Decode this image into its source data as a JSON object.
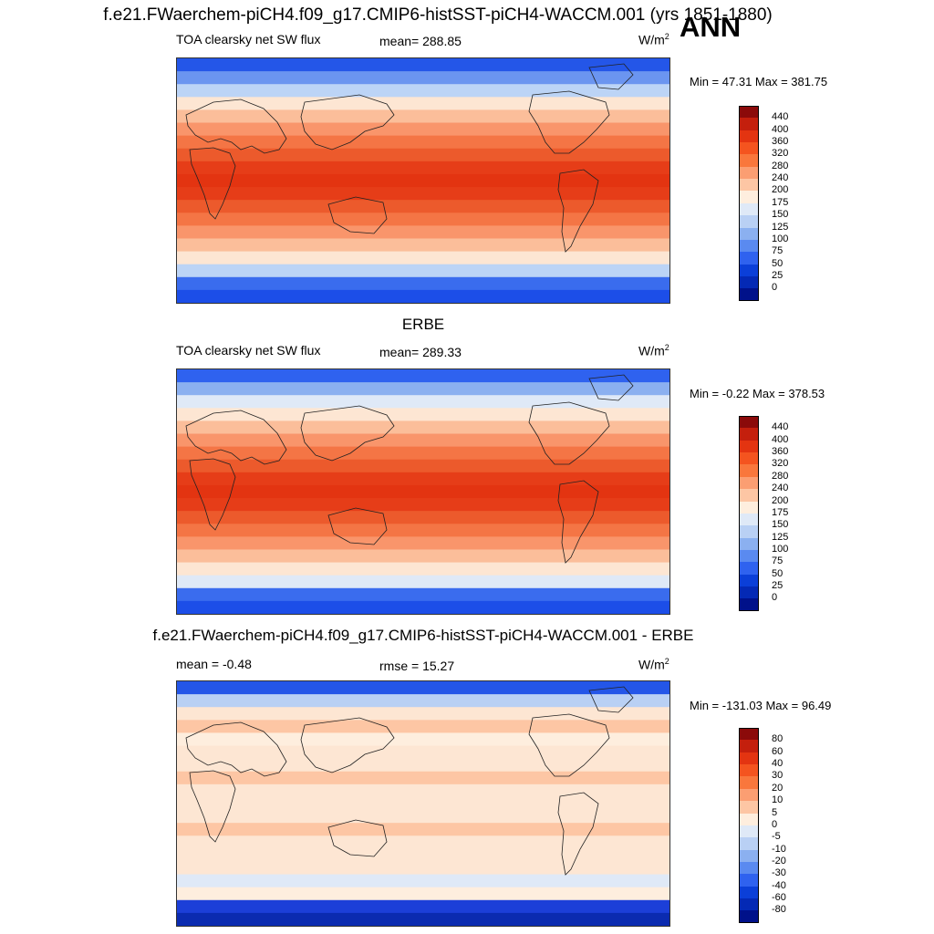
{
  "main_title": "f.e21.FWaerchem-piCH4.f09_g17.CMIP6-histSST-piCH4-WACCM.001 (yrs 1851-1880)",
  "season": "ANN",
  "chart_data": [
    {
      "type": "heatmap",
      "panel_title": "",
      "variable": "TOA clearsky net SW flux",
      "stat_label": "mean= 288.85",
      "units": "W/m",
      "units_sup": "2",
      "minmax": "Min =  47.31 Max = 381.75",
      "colorbar_labels": [
        "440",
        "400",
        "360",
        "320",
        "280",
        "240",
        "200",
        "175",
        "150",
        "125",
        "100",
        "75",
        "50",
        "25",
        "0"
      ],
      "colorbar_colors": [
        "#8b0a0a",
        "#c41f0d",
        "#e33411",
        "#f4541f",
        "#f9773c",
        "#fb9e72",
        "#fdc6a4",
        "#feeede",
        "#dfe9f7",
        "#b9d0f4",
        "#8bb0f0",
        "#5a8af0",
        "#2f62ef",
        "#0b3fd8",
        "#0429b5",
        "#00118a"
      ],
      "band_colors": [
        "#2456e8",
        "#6b95f0",
        "#bcd4f6",
        "#fde6d3",
        "#fbbe9a",
        "#f9956b",
        "#f47545",
        "#ec5a2c",
        "#e63d18",
        "#e33411",
        "#e63d18",
        "#ec5a2c",
        "#f47545",
        "#f9956b",
        "#fbbe9a",
        "#fde6d3",
        "#bcd4f6",
        "#3a6cee",
        "#1c4ee8"
      ]
    },
    {
      "type": "heatmap",
      "panel_title": "ERBE",
      "variable": "TOA clearsky net SW flux",
      "stat_label": "mean= 289.33",
      "units": "W/m",
      "units_sup": "2",
      "minmax": "Min =  -0.22 Max = 378.53",
      "colorbar_labels": [
        "440",
        "400",
        "360",
        "320",
        "280",
        "240",
        "200",
        "175",
        "150",
        "125",
        "100",
        "75",
        "50",
        "25",
        "0"
      ],
      "colorbar_colors": [
        "#8b0a0a",
        "#c41f0d",
        "#e33411",
        "#f4541f",
        "#f9773c",
        "#fb9e72",
        "#fdc6a4",
        "#feeede",
        "#dfe9f7",
        "#b9d0f4",
        "#8bb0f0",
        "#5a8af0",
        "#2f62ef",
        "#0b3fd8",
        "#0429b5",
        "#00118a"
      ],
      "band_colors": [
        "#2f62ef",
        "#8bb0f0",
        "#dfe9f7",
        "#fde6d3",
        "#fbbe9a",
        "#f9956b",
        "#f47545",
        "#ec5a2c",
        "#e63d18",
        "#e33411",
        "#e63d18",
        "#ec5a2c",
        "#f47545",
        "#f9956b",
        "#fbbe9a",
        "#fde6d3",
        "#dfe9f7",
        "#3a6cee",
        "#1c4ee8"
      ]
    },
    {
      "type": "heatmap",
      "panel_title": "f.e21.FWaerchem-piCH4.f09_g17.CMIP6-histSST-piCH4-WACCM.001 - ERBE",
      "variable": "mean =  -0.48",
      "stat_label": "rmse =  15.27",
      "units": "W/m",
      "units_sup": "2",
      "minmax": "Min = -131.03 Max =  96.49",
      "colorbar_labels": [
        "80",
        "60",
        "40",
        "30",
        "20",
        "10",
        "5",
        "0",
        "-5",
        "-10",
        "-20",
        "-30",
        "-40",
        "-60",
        "-80"
      ],
      "colorbar_colors": [
        "#8b0a0a",
        "#c41f0d",
        "#e33411",
        "#f4541f",
        "#f9773c",
        "#fb9e72",
        "#fdc6a4",
        "#feeede",
        "#dfe9f7",
        "#b9d0f4",
        "#8bb0f0",
        "#5a8af0",
        "#2f62ef",
        "#0b3fd8",
        "#0429b5",
        "#00118a"
      ],
      "band_colors": [
        "#2456e8",
        "#b9d0f4",
        "#fde6d3",
        "#fdc6a4",
        "#feeede",
        "#fde6d3",
        "#fde6d3",
        "#fdc6a4",
        "#fde6d3",
        "#fde6d3",
        "#fde6d3",
        "#fdc6a4",
        "#fde6d3",
        "#fde6d3",
        "#fde6d3",
        "#dfe9f7",
        "#feeede",
        "#1c3fd8",
        "#0b2bb0"
      ]
    }
  ]
}
